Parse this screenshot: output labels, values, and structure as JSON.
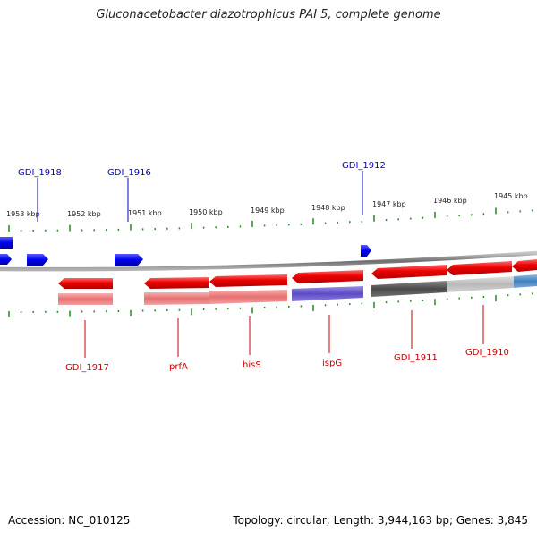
{
  "title": "Gluconacetobacter diazotrophicus PAI 5, complete genome",
  "accession": "Accession: NC_010125",
  "summary": "Topology: circular; Length: 3,944,163 bp; Genes: 3,845",
  "colors": {
    "forward_gene": "#0000ee",
    "reverse_gene": "#ee0000",
    "backbone": "#888888",
    "tick": "#228b22",
    "label_forward": "#0000cc",
    "label_reverse": "#cc0000"
  },
  "scale_labels": [
    "1953 kbp",
    "1952 kbp",
    "1951 kbp",
    "1950 kbp",
    "1949 kbp",
    "1948 kbp",
    "1947 kbp",
    "1946 kbp",
    "1945 kbp"
  ],
  "forward_gene_labels": [
    "GDI_1918",
    "GDI_1916",
    "GDI_1912"
  ],
  "reverse_gene_labels": [
    "GDI_1917",
    "prfA",
    "hisS",
    "ispG",
    "GDI_1911",
    "GDI_1910"
  ]
}
